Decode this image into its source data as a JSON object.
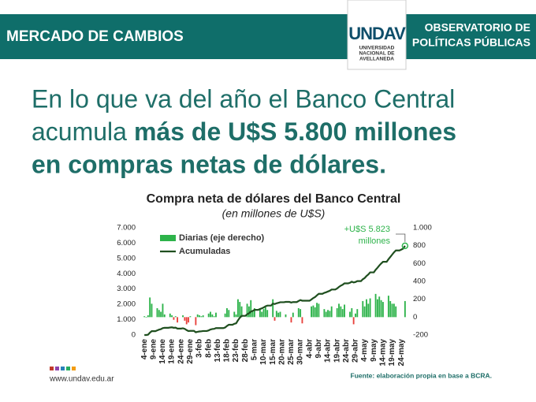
{
  "header": {
    "section": "MERCADO DE CAMBIOS",
    "observatory": [
      "OBSERVATORIO DE",
      "POLÍTICAS PÚBLICAS"
    ],
    "logo": "UNDAV",
    "university": [
      "UNIVERSIDAD",
      "NACIONAL DE",
      "AVELLANEDA"
    ]
  },
  "headline": {
    "line1": "En lo que va del año el Banco Central",
    "line2_normal": "acumula",
    "line2_bold": "más de U$S 5.800 millones",
    "line3": "en compras netas de dólares."
  },
  "footer": {
    "url": "www.undav.edu.ar",
    "source": "Fuente: elaboración propia en base a BCRA."
  },
  "chart_data": {
    "type": "combo",
    "title": "Compra neta de dólares del Banco Central",
    "subtitle": "(en millones de U$S)",
    "annotation": [
      "+U$S 5.823",
      "millones"
    ],
    "legend": "upper left",
    "grid": false,
    "ylim": [
      0,
      7000
    ],
    "yticks": [
      0,
      {
        "value": 1000,
        "label": "1.000"
      },
      {
        "value": 2000,
        "label": "2.000"
      },
      {
        "value": 3000,
        "label": "3.000"
      },
      {
        "value": 4000,
        "label": "4.000"
      },
      {
        "value": 5000,
        "label": "5.000"
      },
      {
        "value": 6000,
        "label": "6.000"
      },
      {
        "value": 7000,
        "label": "7.000"
      }
    ],
    "y2lim": [
      -200,
      1000
    ],
    "y2ticks": [
      -200,
      0,
      200,
      400,
      600,
      800,
      {
        "value": 1000,
        "label": "1.000"
      }
    ],
    "categories": [
      "4-ene",
      null,
      null,
      null,
      null,
      "9-ene",
      null,
      null,
      null,
      null,
      "14-ene",
      null,
      null,
      null,
      null,
      "19-ene",
      null,
      null,
      null,
      null,
      "24-ene",
      null,
      null,
      null,
      null,
      "29-ene",
      null,
      null,
      null,
      null,
      "3-feb",
      null,
      null,
      null,
      null,
      "8-feb",
      null,
      null,
      null,
      null,
      "13-feb",
      null,
      null,
      null,
      null,
      "18-feb",
      null,
      null,
      null,
      null,
      "23-feb",
      null,
      null,
      null,
      null,
      "28-feb",
      null,
      null,
      null,
      null,
      "5-mar",
      null,
      null,
      null,
      null,
      "10-mar",
      null,
      null,
      null,
      null,
      "15-mar",
      null,
      null,
      null,
      null,
      "20-mar",
      null,
      null,
      null,
      null,
      "25-mar",
      null,
      null,
      null,
      null,
      "30-mar",
      null,
      null,
      null,
      null,
      "4-abr",
      null,
      null,
      null,
      null,
      "9-abr",
      null,
      null,
      null,
      null,
      "14-abr",
      null,
      null,
      null,
      null,
      "19-abr",
      null,
      null,
      null,
      null,
      "24-abr",
      null,
      null,
      null,
      null,
      "29-abr",
      null,
      null,
      null,
      null,
      "4-may",
      null,
      null,
      null,
      null,
      "9-may",
      null,
      null,
      null,
      null,
      "14-may",
      null,
      null,
      null,
      null,
      "19-may",
      null,
      null,
      null,
      null,
      "24-may",
      null,
      null
    ],
    "series": [
      {
        "name": "Diarias (eje derecho)",
        "type": "bar",
        "axis": "y2",
        "color": "#2db34a",
        "negative_color": "#e8413c",
        "values": [
          10,
          0,
          20,
          220,
          150,
          null,
          null,
          100,
          80,
          60,
          150,
          30,
          null,
          null,
          40,
          20,
          -30,
          10,
          -60,
          null,
          null,
          20,
          -40,
          -80,
          -60,
          10,
          null,
          null,
          -90,
          30,
          20,
          10,
          20,
          null,
          null,
          40,
          60,
          30,
          10,
          50,
          null,
          null,
          null,
          null,
          40,
          100,
          80,
          null,
          null,
          60,
          30,
          200,
          170,
          120,
          null,
          null,
          150,
          120,
          190,
          60,
          100,
          null,
          null,
          100,
          60,
          90,
          110,
          80,
          null,
          null,
          200,
          -40,
          70,
          50,
          60,
          null,
          null,
          30,
          null,
          null,
          -60,
          50,
          null,
          null,
          100,
          90,
          -70,
          null,
          null,
          null,
          null,
          120,
          130,
          110,
          160,
          150,
          null,
          null,
          90,
          60,
          80,
          70,
          120,
          null,
          null,
          100,
          150,
          120,
          90,
          140,
          null,
          null,
          60,
          100,
          -80,
          40,
          90,
          null,
          null,
          180,
          120,
          200,
          150,
          210,
          null,
          null,
          260,
          200,
          230,
          190,
          170,
          null,
          null,
          240,
          180,
          150,
          150,
          120,
          null,
          null,
          null,
          null,
          180
        ]
      },
      {
        "name": "Acumuladas",
        "type": "line",
        "color": "#1f4f1f",
        "values": [
          0,
          0,
          20,
          150,
          250,
          250,
          250,
          300,
          350,
          380,
          450,
          470,
          470,
          470,
          490,
          500,
          470,
          480,
          420,
          420,
          420,
          440,
          400,
          320,
          260,
          270,
          270,
          270,
          180,
          210,
          230,
          240,
          260,
          260,
          260,
          300,
          360,
          390,
          400,
          450,
          450,
          450,
          450,
          450,
          490,
          590,
          670,
          670,
          670,
          730,
          760,
          960,
          1130,
          1250,
          1250,
          1250,
          1350,
          1420,
          1530,
          1570,
          1640,
          1640,
          1640,
          1700,
          1740,
          1800,
          1870,
          1920,
          1920,
          1920,
          2050,
          2020,
          2070,
          2100,
          2140,
          2140,
          2140,
          2160,
          2160,
          2160,
          2120,
          2150,
          2150,
          2150,
          2220,
          2280,
          2240,
          2240,
          2240,
          2240,
          2240,
          2320,
          2410,
          2480,
          2590,
          2690,
          2690,
          2690,
          2750,
          2790,
          2840,
          2890,
          2970,
          2970,
          2970,
          3040,
          3140,
          3220,
          3280,
          3370,
          3370,
          3370,
          3410,
          3480,
          3430,
          3460,
          3520,
          3520,
          3520,
          3640,
          3720,
          3850,
          3950,
          4090,
          4090,
          4090,
          4260,
          4390,
          4540,
          4670,
          4780,
          4780,
          4780,
          4950,
          5100,
          5250,
          5400,
          5520,
          5520,
          5520,
          5580,
          5640,
          5823
        ]
      }
    ]
  }
}
